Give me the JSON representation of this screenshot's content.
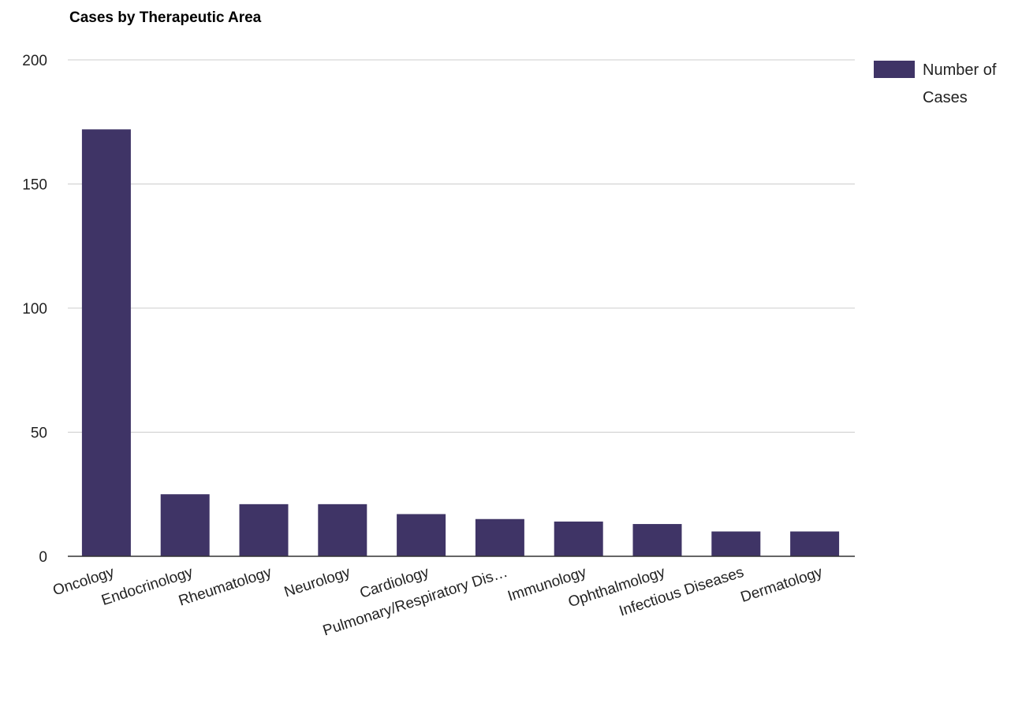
{
  "chart_data": {
    "type": "bar",
    "title": "Cases by Therapeutic Area",
    "xlabel": "",
    "ylabel": "",
    "categories": [
      "Oncology",
      "Endocrinology",
      "Rheumatology",
      "Neurology",
      "Cardiology",
      "Pulmonary/Respiratory Dis…",
      "Immunology",
      "Ophthalmology",
      "Infectious Diseases",
      "Dermatology"
    ],
    "series": [
      {
        "name": "Number of Cases",
        "color": "#3f3466",
        "values": [
          172,
          25,
          21,
          21,
          17,
          15,
          14,
          13,
          10,
          10
        ]
      }
    ],
    "ylim": [
      0,
      200
    ],
    "yticks": [
      "0",
      "50",
      "100",
      "150",
      "200"
    ],
    "grid": true,
    "legend": {
      "position": "right",
      "lines": [
        "Number of",
        "Cases"
      ]
    }
  }
}
